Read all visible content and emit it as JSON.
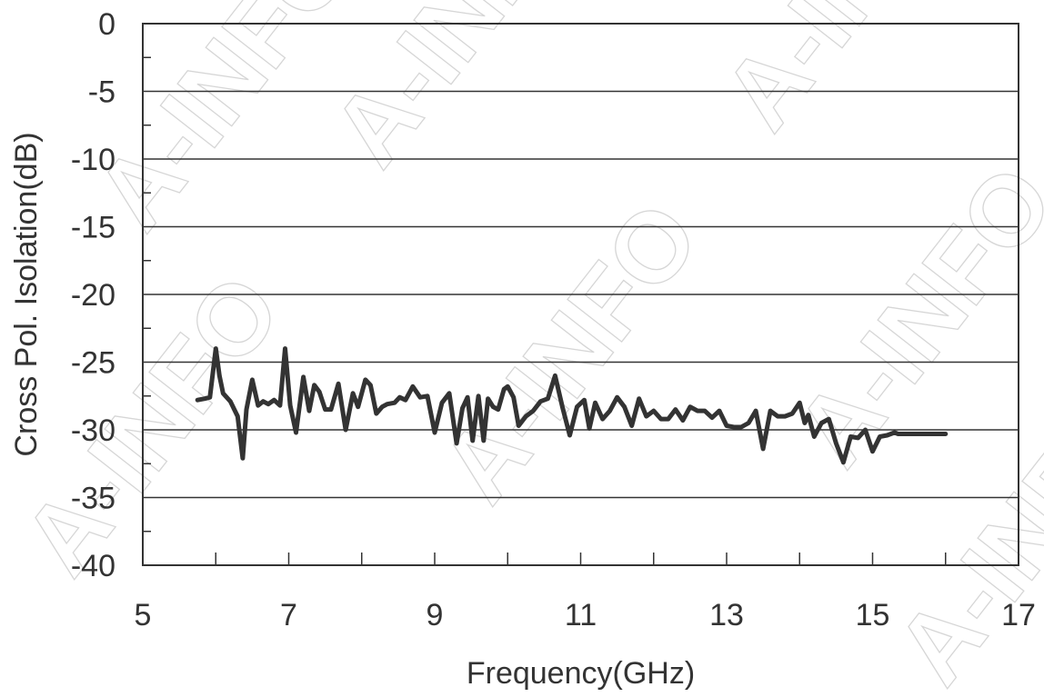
{
  "watermark": "A-INFO",
  "chart_data": {
    "type": "line",
    "xlabel": "Frequency(GHz)",
    "ylabel": "Cross Pol. Isolation(dB)",
    "xlim": [
      5,
      17
    ],
    "ylim": [
      -40,
      0
    ],
    "xticks": [
      5,
      7,
      9,
      11,
      13,
      15,
      17
    ],
    "yticks": [
      0,
      -5,
      -10,
      -15,
      -20,
      -25,
      -30,
      -35,
      -40
    ],
    "grid": "horizontal",
    "line_color": "#333333",
    "series": [
      {
        "x": [
          5.75,
          5.85,
          5.92,
          6.0,
          6.05,
          6.1,
          6.2,
          6.3,
          6.37,
          6.42,
          6.5,
          6.58,
          6.65,
          6.72,
          6.8,
          6.88,
          6.95,
          7.02,
          7.1,
          7.2,
          7.28,
          7.35,
          7.42,
          7.5,
          7.58,
          7.68,
          7.78,
          7.88,
          7.95,
          8.05,
          8.12,
          8.2,
          8.28,
          8.35,
          8.45,
          8.52,
          8.6,
          8.7,
          8.8,
          8.9,
          9.0,
          9.1,
          9.2,
          9.3,
          9.38,
          9.45,
          9.52,
          9.6,
          9.67,
          9.73,
          9.8,
          9.87,
          9.95,
          10.0,
          10.08,
          10.15,
          10.25,
          10.35,
          10.45,
          10.55,
          10.65,
          10.75,
          10.85,
          10.95,
          11.05,
          11.12,
          11.2,
          11.3,
          11.4,
          11.5,
          11.6,
          11.7,
          11.8,
          11.9,
          12.0,
          12.1,
          12.2,
          12.3,
          12.4,
          12.5,
          12.6,
          12.7,
          12.8,
          12.9,
          13.0,
          13.1,
          13.2,
          13.3,
          13.4,
          13.5,
          13.6,
          13.7,
          13.8,
          13.9,
          14.0,
          14.07,
          14.12,
          14.2,
          14.3,
          14.4,
          14.5,
          14.6,
          14.7,
          14.8,
          14.9,
          15.0,
          15.1,
          15.2,
          15.3,
          15.35,
          15.45,
          15.55,
          15.65,
          15.75,
          15.85,
          15.95,
          16.0
        ],
        "y": [
          -27.8,
          -27.7,
          -27.6,
          -24.0,
          -26.0,
          -27.3,
          -27.9,
          -29.0,
          -32.1,
          -28.5,
          -26.3,
          -28.2,
          -27.9,
          -28.1,
          -27.8,
          -28.2,
          -24.0,
          -28.2,
          -30.2,
          -26.1,
          -28.6,
          -26.7,
          -27.2,
          -28.5,
          -28.5,
          -26.6,
          -30.0,
          -27.3,
          -28.3,
          -26.3,
          -26.7,
          -28.8,
          -28.3,
          -28.1,
          -28.0,
          -27.6,
          -27.8,
          -26.8,
          -27.6,
          -27.5,
          -30.2,
          -28.0,
          -27.3,
          -31.0,
          -28.4,
          -27.6,
          -30.8,
          -27.5,
          -30.8,
          -27.7,
          -28.3,
          -28.5,
          -27.0,
          -26.8,
          -27.6,
          -29.7,
          -29.0,
          -28.6,
          -27.9,
          -27.7,
          -26.0,
          -28.3,
          -30.4,
          -28.3,
          -27.8,
          -29.9,
          -28.0,
          -29.2,
          -28.6,
          -27.6,
          -28.3,
          -29.7,
          -27.7,
          -29.0,
          -28.6,
          -29.2,
          -29.2,
          -28.5,
          -29.3,
          -28.3,
          -28.6,
          -28.6,
          -29.1,
          -28.6,
          -29.7,
          -29.8,
          -29.8,
          -29.5,
          -28.6,
          -31.4,
          -28.6,
          -29.0,
          -29.0,
          -28.8,
          -28.0,
          -29.5,
          -28.9,
          -30.5,
          -29.5,
          -29.2,
          -31.0,
          -32.4,
          -30.5,
          -30.6,
          -30.0,
          -31.6,
          -30.5,
          -30.4,
          -30.2,
          -30.3,
          -30.3,
          -30.3,
          -30.3,
          -30.3,
          -30.3,
          -30.3,
          -30.3
        ]
      }
    ]
  }
}
